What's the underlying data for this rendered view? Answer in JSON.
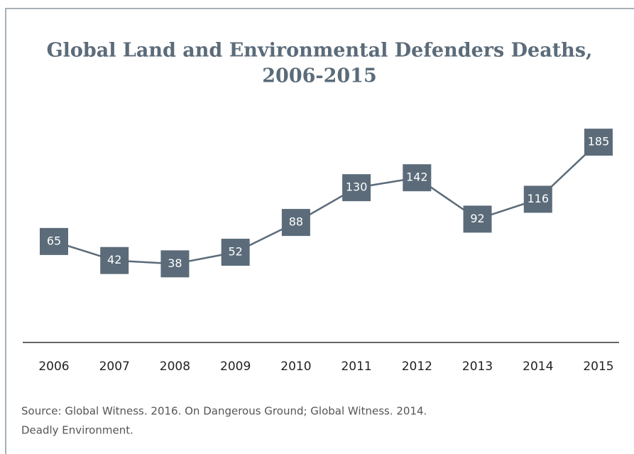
{
  "chart_data": {
    "type": "line",
    "title": [
      "Global Land and Environmental Defenders Deaths,",
      "2006-2015"
    ],
    "categories": [
      "2006",
      "2007",
      "2008",
      "2009",
      "2010",
      "2011",
      "2012",
      "2013",
      "2014",
      "2015"
    ],
    "series": [
      {
        "color": "#5b6b79",
        "values": [
          65,
          42,
          38,
          52,
          88,
          130,
          142,
          92,
          116,
          185
        ]
      }
    ],
    "ylim": [
      -57,
      228
    ],
    "source": [
      "Source: Global Witness. 2016. On Dangerous Ground; Global Witness. 2014.",
      "Deadly Environment."
    ]
  }
}
